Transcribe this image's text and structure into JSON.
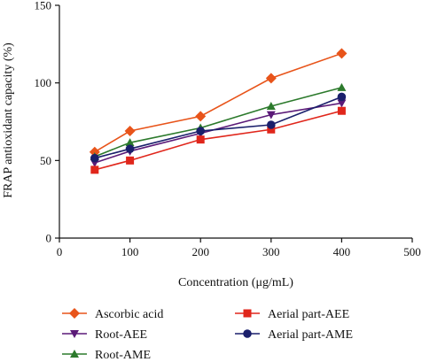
{
  "chart_data": {
    "type": "line",
    "xlabel": "Concentration (μg/mL)",
    "ylabel": "FRAP antioxidant capacity (%)",
    "xlim": [
      0,
      500
    ],
    "ylim": [
      0,
      150
    ],
    "xticks": [
      0,
      100,
      200,
      300,
      400,
      500
    ],
    "yticks": [
      0,
      50,
      100,
      150
    ],
    "x": [
      50,
      100,
      200,
      300,
      400
    ],
    "grid": false,
    "legend_position": "bottom",
    "series": [
      {
        "name": "Ascorbic acid",
        "values": [
          55.5,
          69,
          78.5,
          103,
          119
        ],
        "color": "#e8541a",
        "marker": "diamond"
      },
      {
        "name": "Root-AEE",
        "values": [
          48.5,
          56,
          67.5,
          79.5,
          87
        ],
        "color": "#5b1a78",
        "marker": "triangle-down"
      },
      {
        "name": "Root-AME",
        "values": [
          52.5,
          61.5,
          71,
          85,
          97
        ],
        "color": "#2c7a2c",
        "marker": "triangle-up"
      },
      {
        "name": "Aerial part-AEE",
        "values": [
          44,
          50,
          63.5,
          70,
          82
        ],
        "color": "#e0261b",
        "marker": "square"
      },
      {
        "name": "Aerial part-AME",
        "values": [
          51.5,
          57.5,
          69,
          73,
          91
        ],
        "color": "#1a1f6b",
        "marker": "circle"
      }
    ]
  }
}
